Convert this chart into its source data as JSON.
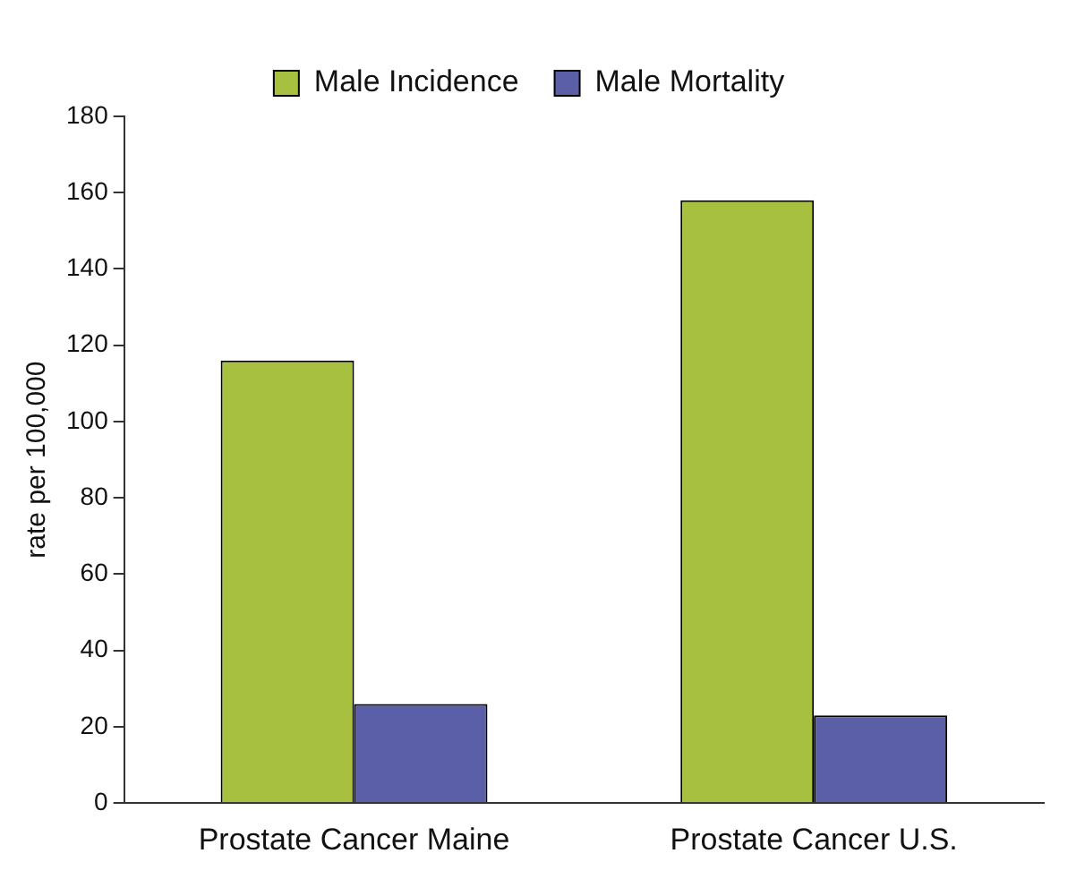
{
  "chart_data": {
    "type": "bar",
    "ylabel": "rate per 100,000",
    "categories": [
      "Prostate Cancer Maine",
      "Prostate Cancer U.S."
    ],
    "series": [
      {
        "name": "Male Incidence",
        "color": "#a8c040",
        "values": [
          116,
          158
        ]
      },
      {
        "name": "Male Mortality",
        "color": "#5b5fa8",
        "values": [
          26,
          23
        ]
      }
    ],
    "ylim": [
      0,
      180
    ],
    "yticks": [
      0,
      20,
      40,
      60,
      80,
      100,
      120,
      140,
      160,
      180
    ],
    "grid": false,
    "legend": "top"
  }
}
